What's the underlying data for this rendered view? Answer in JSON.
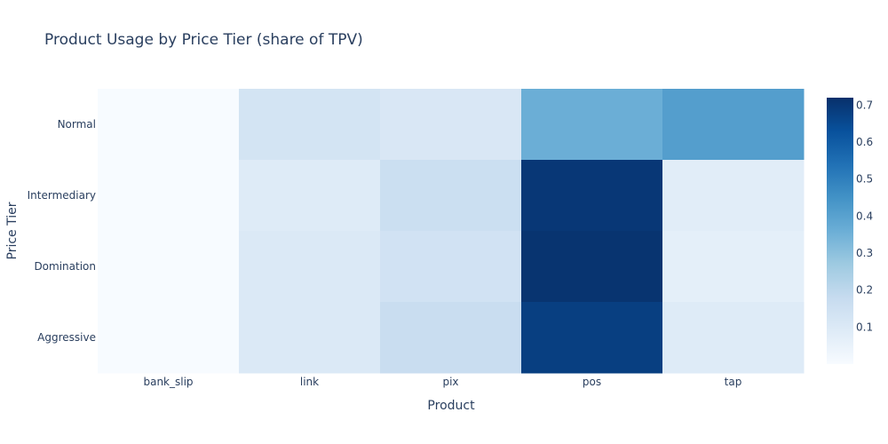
{
  "chart_data": {
    "type": "heatmap",
    "title": "Product Usage by Price Tier (share of TPV)",
    "xlabel": "Product",
    "ylabel": "Price Tier",
    "x": [
      "bank_slip",
      "link",
      "pix",
      "pos",
      "tap"
    ],
    "y": [
      "Normal",
      "Intermediary",
      "Domination",
      "Aggressive"
    ],
    "z": [
      [
        0.0,
        0.13,
        0.11,
        0.36,
        0.41
      ],
      [
        0.0,
        0.09,
        0.16,
        0.7,
        0.08
      ],
      [
        0.0,
        0.1,
        0.14,
        0.71,
        0.07
      ],
      [
        0.0,
        0.1,
        0.17,
        0.68,
        0.09
      ]
    ],
    "zlim": [
      0,
      0.72
    ],
    "colorscale": "Blues",
    "colorscale_stops": [
      [
        0.0,
        "#f7fbff"
      ],
      [
        0.125,
        "#deebf7"
      ],
      [
        0.25,
        "#c6dbef"
      ],
      [
        0.375,
        "#9ecae1"
      ],
      [
        0.5,
        "#6baed6"
      ],
      [
        0.625,
        "#4292c6"
      ],
      [
        0.75,
        "#2171b5"
      ],
      [
        0.875,
        "#08519c"
      ],
      [
        1.0,
        "#08306b"
      ]
    ],
    "colorbar_ticks": [
      0.1,
      0.2,
      0.3,
      0.4,
      0.5,
      0.6,
      0.7
    ],
    "colorbar_tick_labels": [
      "0.1",
      "0.2",
      "0.3",
      "0.4",
      "0.5",
      "0.6",
      "0.7"
    ]
  }
}
